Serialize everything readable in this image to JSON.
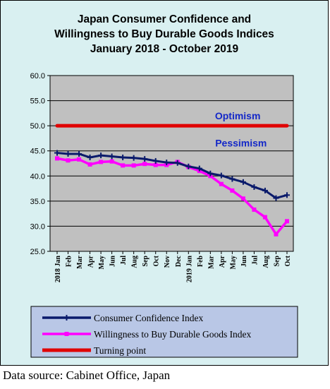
{
  "chart_data": {
    "type": "line",
    "title_lines": [
      "Japan Consumer Confidence and",
      "Willingness to Buy Durable Goods Indices",
      "January 2018 - October 2019"
    ],
    "xlabel": "",
    "ylabel": "",
    "ylim": [
      25,
      60
    ],
    "yticks": [
      "60.0",
      "55.0",
      "50.0",
      "45.0",
      "40.0",
      "35.0",
      "30.0",
      "25.0"
    ],
    "ytick_values": [
      60,
      55,
      50,
      45,
      40,
      35,
      30,
      25
    ],
    "grid": true,
    "legend_placement": "bottom",
    "categories": [
      "2018 Jan",
      "Feb",
      "Mar",
      "Apr",
      "May",
      "Jun",
      "Jul",
      "Aug",
      "Sep",
      "Oct",
      "Nov",
      "Dec",
      "2019 Jan",
      "Feb",
      "Mar",
      "Apr",
      "May",
      "Jun",
      "Jul",
      "Aug",
      "Sep",
      "Oct"
    ],
    "series": [
      {
        "name": "Consumer Confidence Index",
        "color": "#0a1a6b",
        "marker": "cross",
        "values": [
          44.6,
          44.4,
          44.4,
          43.7,
          44.1,
          43.9,
          43.7,
          43.6,
          43.4,
          43.0,
          42.7,
          42.6,
          41.9,
          41.5,
          40.5,
          40.1,
          39.4,
          38.8,
          37.8,
          37.1,
          35.6,
          36.2
        ]
      },
      {
        "name": "Willingness to Buy Durable Goods Index",
        "color": "#ff00ff",
        "marker": "square",
        "values": [
          43.5,
          43.1,
          43.3,
          42.3,
          42.8,
          42.9,
          42.1,
          42.1,
          42.4,
          42.2,
          42.2,
          42.8,
          41.8,
          41.0,
          40.0,
          38.4,
          37.1,
          35.5,
          33.3,
          31.8,
          28.4,
          31.0
        ]
      },
      {
        "name": "Turning point",
        "color": "#e00000",
        "marker": "none",
        "values": [
          50,
          50,
          50,
          50,
          50,
          50,
          50,
          50,
          50,
          50,
          50,
          50,
          50,
          50,
          50,
          50,
          50,
          50,
          50,
          50,
          50,
          50
        ]
      }
    ],
    "annotations": [
      {
        "text": "Optimism",
        "x": 16.5,
        "y": 52
      },
      {
        "text": "Pessimism",
        "x": 16.8,
        "y": 46.6
      }
    ]
  },
  "source": "Data source: Cabinet Office, Japan",
  "colors": {
    "frame_bg": "#d9f0f1",
    "plot_bg": "#c0c0c0",
    "legend_bg": "#b9c7e6",
    "annotation": "#1428c8"
  }
}
